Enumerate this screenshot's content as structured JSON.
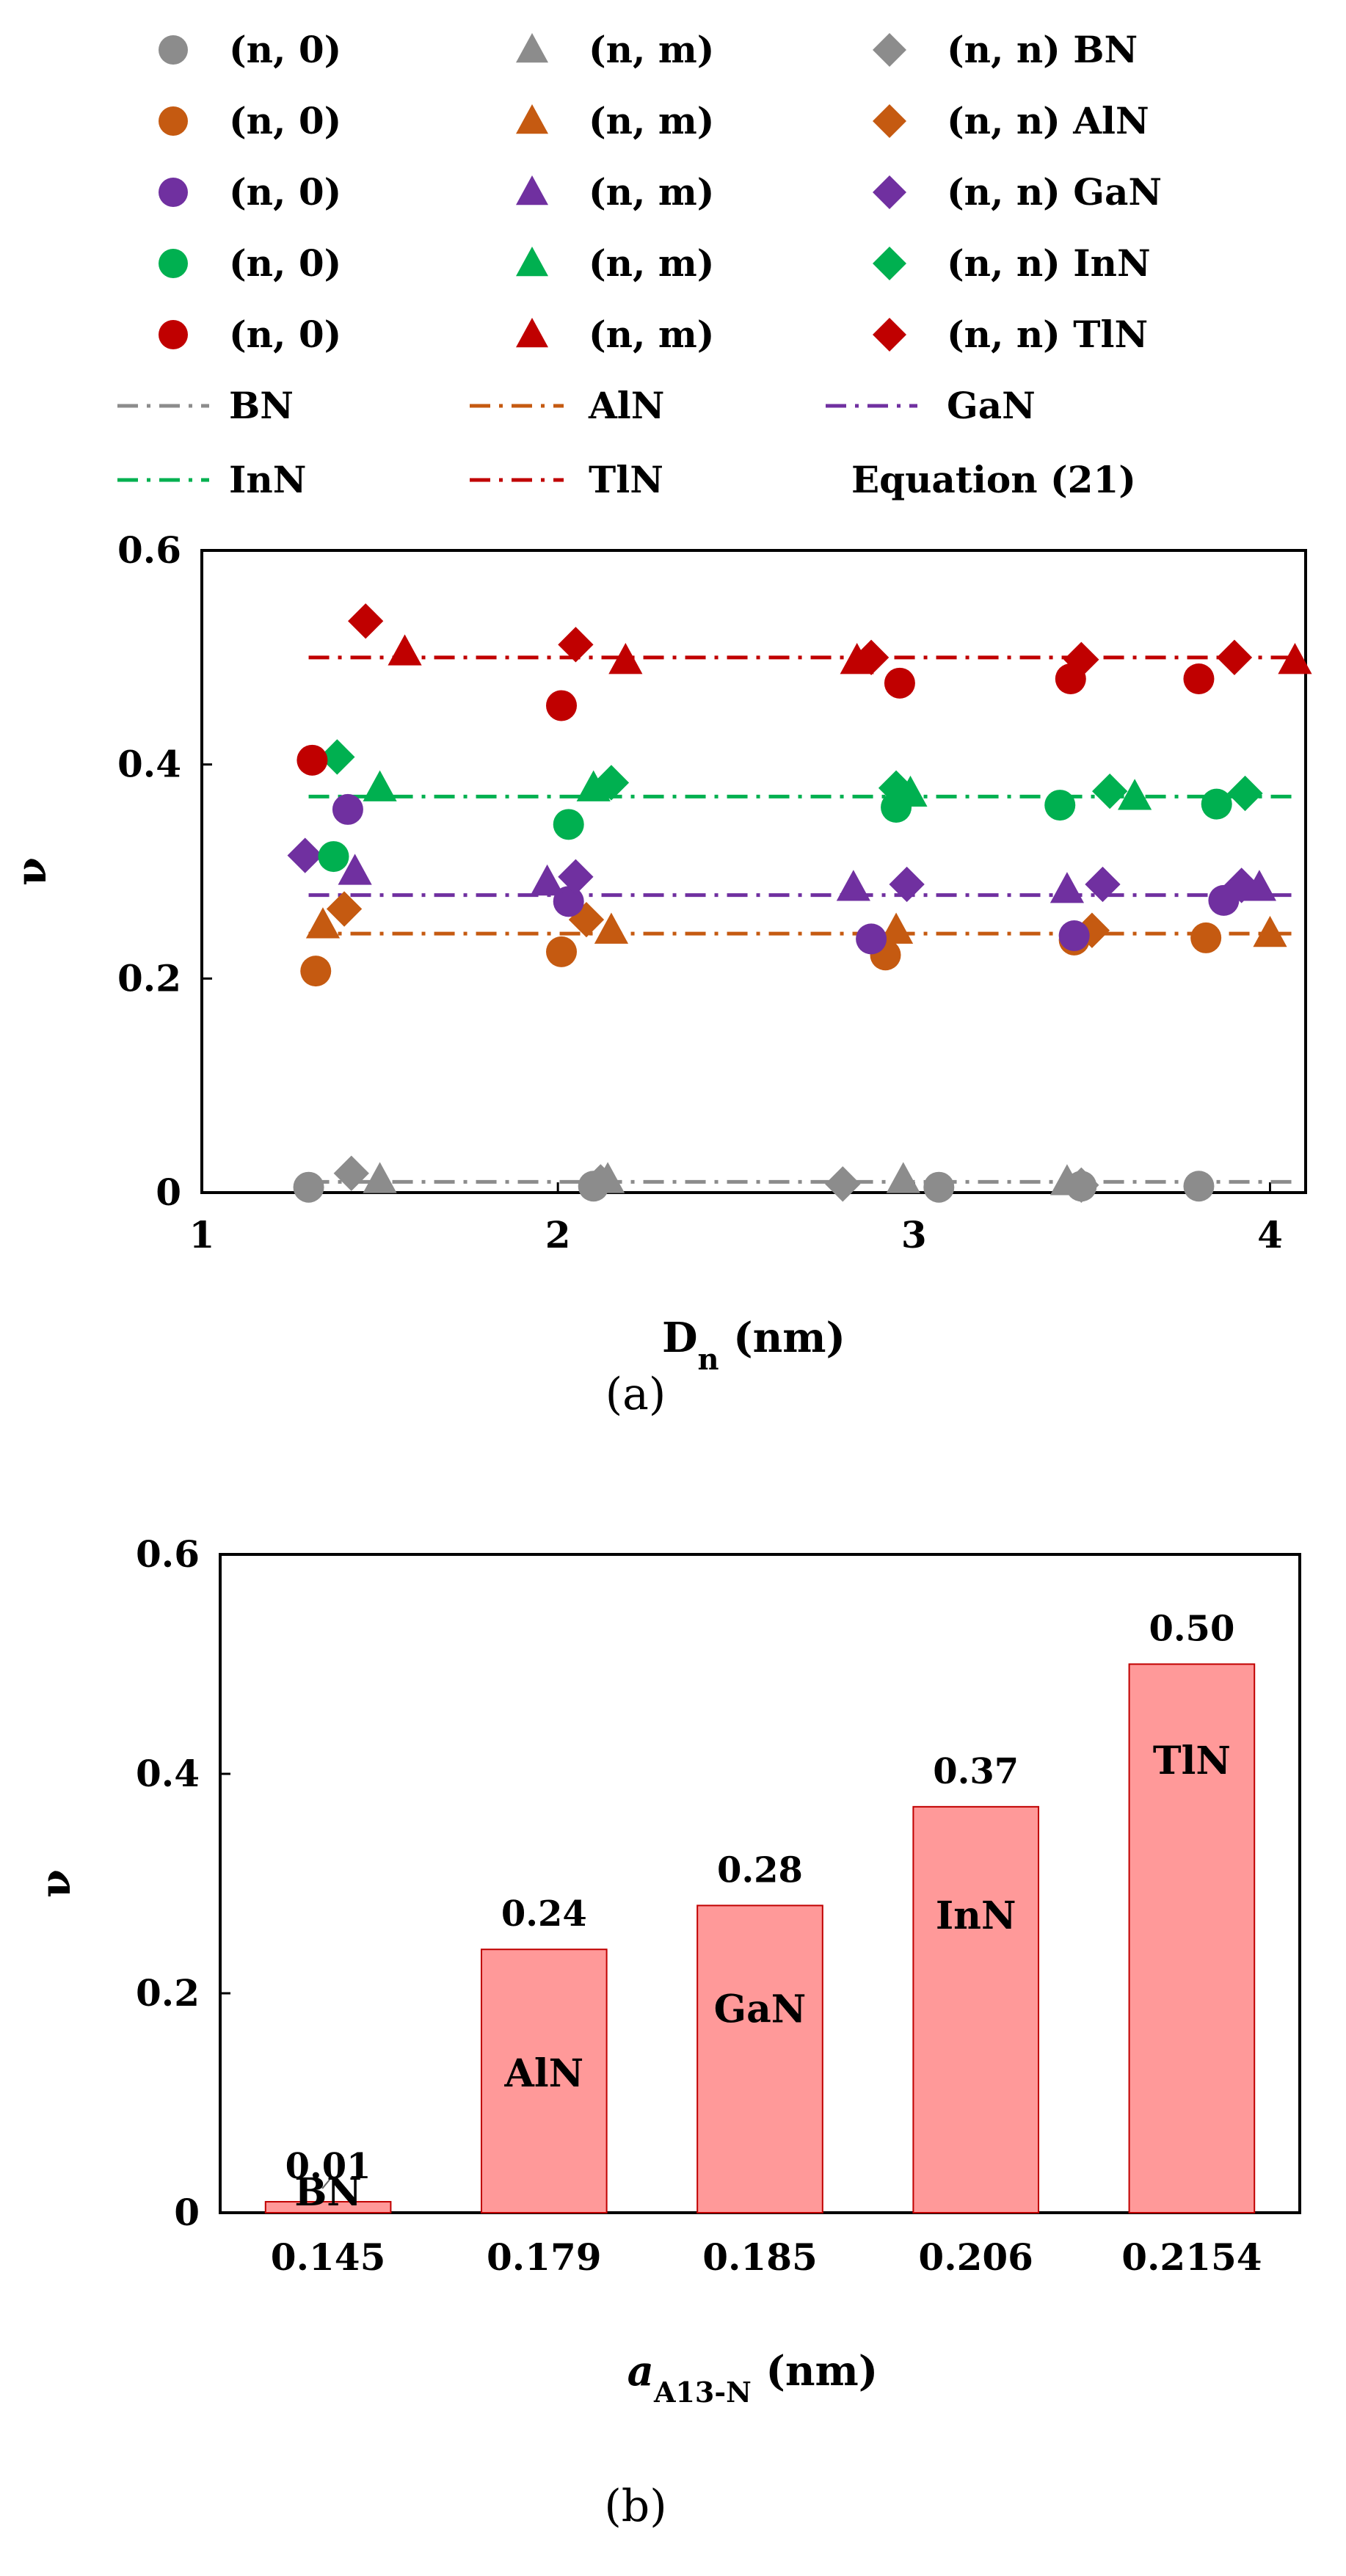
{
  "colors": {
    "BN": "#8c8c8c",
    "AlN": "#c55a11",
    "GaN": "#7030a0",
    "InN": "#00b050",
    "TlN": "#c00000",
    "bar_fill": "#ff9999",
    "bar_stroke": "#c00000"
  },
  "legend": {
    "rows": [
      [
        "(n, 0)",
        "(n, m)",
        "(n, n) BN"
      ],
      [
        "(n, 0)",
        "(n, m)",
        "(n, n) AlN"
      ],
      [
        "(n, 0)",
        "(n, m)",
        "(n, n) GaN"
      ],
      [
        "(n, 0)",
        "(n, m)",
        "(n, n) InN"
      ],
      [
        "(n, 0)",
        "(n, m)",
        "(n, n) TlN"
      ]
    ],
    "lines": [
      "BN",
      "AlN",
      "GaN",
      "InN",
      "TlN"
    ],
    "equation_label": "Equation (21)"
  },
  "panel_a_label": "(a)",
  "panel_b_label": "(b)",
  "chart_data": [
    {
      "type": "scatter",
      "xlabel_main": "D",
      "xlabel_sub": "n",
      "xlabel_unit": " (nm)",
      "ylabel": "ν",
      "xlim": [
        1,
        4.1
      ],
      "ylim": [
        0,
        0.6
      ],
      "xticks": [
        "1",
        "2",
        "3",
        "4"
      ],
      "yticks": [
        "0",
        "0.2",
        "0.4",
        "0.6"
      ],
      "series": [
        {
          "material": "BN",
          "kind": "(n, 0)",
          "marker": "circle",
          "points": [
            [
              1.3,
              0.005
            ],
            [
              2.1,
              0.006
            ],
            [
              3.07,
              0.005
            ],
            [
              3.47,
              0.006
            ],
            [
              3.8,
              0.006
            ]
          ]
        },
        {
          "material": "BN",
          "kind": "(n, m)",
          "marker": "triangle",
          "points": [
            [
              1.5,
              0.012
            ],
            [
              2.14,
              0.012
            ],
            [
              2.97,
              0.012
            ],
            [
              3.43,
              0.01
            ]
          ]
        },
        {
          "material": "BN",
          "kind": "(n, n)",
          "marker": "diamond",
          "points": [
            [
              1.42,
              0.018
            ],
            [
              2.12,
              0.01
            ],
            [
              2.8,
              0.008
            ],
            [
              3.47,
              0.007
            ]
          ]
        },
        {
          "material": "AlN",
          "kind": "(n, 0)",
          "marker": "circle",
          "points": [
            [
              1.32,
              0.207
            ],
            [
              2.01,
              0.225
            ],
            [
              2.92,
              0.222
            ],
            [
              3.45,
              0.236
            ],
            [
              3.82,
              0.238
            ]
          ]
        },
        {
          "material": "AlN",
          "kind": "(n, m)",
          "marker": "triangle",
          "points": [
            [
              1.34,
              0.25
            ],
            [
              2.15,
              0.245
            ],
            [
              2.95,
              0.245
            ],
            [
              4.0,
              0.242
            ]
          ]
        },
        {
          "material": "AlN",
          "kind": "(n, n)",
          "marker": "diamond",
          "points": [
            [
              1.4,
              0.265
            ],
            [
              2.08,
              0.255
            ],
            [
              3.5,
              0.245
            ]
          ]
        },
        {
          "material": "GaN",
          "kind": "(n, 0)",
          "marker": "circle",
          "points": [
            [
              1.41,
              0.358
            ],
            [
              2.03,
              0.272
            ],
            [
              2.88,
              0.237
            ],
            [
              3.45,
              0.24
            ],
            [
              3.87,
              0.273
            ]
          ]
        },
        {
          "material": "GaN",
          "kind": "(n, m)",
          "marker": "triangle",
          "points": [
            [
              1.43,
              0.3
            ],
            [
              1.97,
              0.29
            ],
            [
              2.83,
              0.285
            ],
            [
              3.43,
              0.283
            ],
            [
              3.97,
              0.285
            ]
          ]
        },
        {
          "material": "GaN",
          "kind": "(n, n)",
          "marker": "diamond",
          "points": [
            [
              1.29,
              0.315
            ],
            [
              2.05,
              0.295
            ],
            [
              2.98,
              0.288
            ],
            [
              3.53,
              0.288
            ],
            [
              3.92,
              0.287
            ]
          ]
        },
        {
          "material": "InN",
          "kind": "(n, 0)",
          "marker": "circle",
          "points": [
            [
              1.37,
              0.314
            ],
            [
              2.03,
              0.344
            ],
            [
              2.95,
              0.36
            ],
            [
              3.41,
              0.362
            ],
            [
              3.85,
              0.363
            ]
          ]
        },
        {
          "material": "InN",
          "kind": "(n, m)",
          "marker": "triangle",
          "points": [
            [
              1.5,
              0.378
            ],
            [
              2.1,
              0.378
            ],
            [
              2.99,
              0.373
            ],
            [
              3.62,
              0.37
            ]
          ]
        },
        {
          "material": "InN",
          "kind": "(n, n)",
          "marker": "diamond",
          "points": [
            [
              1.38,
              0.407
            ],
            [
              2.15,
              0.383
            ],
            [
              2.95,
              0.378
            ],
            [
              3.55,
              0.375
            ],
            [
              3.93,
              0.373
            ]
          ]
        },
        {
          "material": "TlN",
          "kind": "(n, 0)",
          "marker": "circle",
          "points": [
            [
              1.31,
              0.404
            ],
            [
              2.01,
              0.455
            ],
            [
              2.96,
              0.476
            ],
            [
              3.44,
              0.48
            ],
            [
              3.8,
              0.48
            ]
          ]
        },
        {
          "material": "TlN",
          "kind": "(n, m)",
          "marker": "triangle",
          "points": [
            [
              1.57,
              0.505
            ],
            [
              2.19,
              0.497
            ],
            [
              2.84,
              0.497
            ],
            [
              4.07,
              0.497
            ]
          ]
        },
        {
          "material": "TlN",
          "kind": "(n, n)",
          "marker": "diamond",
          "points": [
            [
              1.46,
              0.534
            ],
            [
              2.05,
              0.512
            ],
            [
              2.88,
              0.5
            ],
            [
              3.47,
              0.498
            ],
            [
              3.9,
              0.5
            ]
          ]
        }
      ],
      "fit_lines": [
        {
          "material": "BN",
          "y": 0.01
        },
        {
          "material": "AlN",
          "y": 0.242
        },
        {
          "material": "GaN",
          "y": 0.278
        },
        {
          "material": "InN",
          "y": 0.37
        },
        {
          "material": "TlN",
          "y": 0.5
        }
      ]
    },
    {
      "type": "bar",
      "categories": [
        "0.145",
        "0.179",
        "0.185",
        "0.206",
        "0.2154"
      ],
      "values": [
        0.01,
        0.24,
        0.28,
        0.37,
        0.5
      ],
      "value_labels": [
        "0.01",
        "0.24",
        "0.28",
        "0.37",
        "0.50"
      ],
      "bar_names": [
        "BN",
        "AlN",
        "GaN",
        "InN",
        "TlN"
      ],
      "xlabel_main": "a",
      "xlabel_sub": "A13-N",
      "xlabel_unit": " (nm)",
      "ylabel": "ν",
      "ylim": [
        0,
        0.6
      ],
      "yticks": [
        "0",
        "0.2",
        "0.4",
        "0.6"
      ]
    }
  ]
}
